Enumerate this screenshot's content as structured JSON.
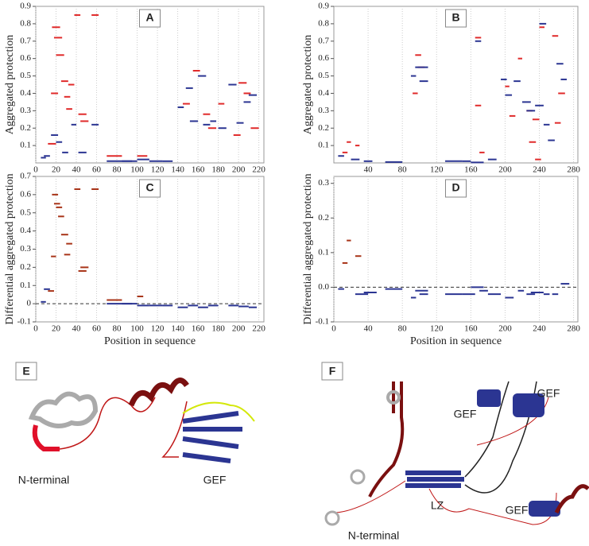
{
  "chart_data": [
    {
      "type": "segment",
      "label": "A",
      "ylabel": "Aggregated protection",
      "xlim": [
        0,
        225
      ],
      "xticks": [
        0,
        20,
        40,
        60,
        80,
        100,
        120,
        140,
        160,
        180,
        200,
        220
      ],
      "ylim": [
        0,
        0.9
      ],
      "yticks": [
        0.1,
        0.2,
        0.3,
        0.4,
        0.5,
        0.6,
        0.7,
        0.8,
        0.9
      ],
      "series": [
        {
          "color": "#e02a2a",
          "x": [
            12,
            15,
            16,
            18,
            20,
            25,
            28,
            30,
            32,
            38,
            42,
            44,
            55,
            70,
            100,
            145,
            155,
            165,
            170,
            180,
            195,
            200,
            205,
            212
          ],
          "x_end": [
            20,
            22,
            24,
            26,
            28,
            32,
            34,
            36,
            38,
            44,
            50,
            52,
            62,
            85,
            110,
            152,
            162,
            172,
            178,
            186,
            202,
            208,
            212,
            220
          ],
          "values": [
            0.11,
            0.4,
            0.78,
            0.72,
            0.62,
            0.47,
            0.38,
            0.31,
            0.45,
            0.85,
            0.28,
            0.24,
            0.85,
            0.04,
            0.04,
            0.34,
            0.53,
            0.28,
            0.2,
            0.34,
            0.16,
            0.46,
            0.4,
            0.2
          ]
        },
        {
          "color": "#2b3592",
          "x": [
            5,
            8,
            15,
            20,
            26,
            35,
            42,
            55,
            70,
            85,
            100,
            112,
            125,
            140,
            148,
            152,
            160,
            165,
            172,
            180,
            190,
            198,
            205,
            210
          ],
          "x_end": [
            10,
            14,
            22,
            26,
            32,
            40,
            50,
            62,
            95,
            100,
            112,
            125,
            135,
            146,
            155,
            160,
            168,
            172,
            178,
            188,
            198,
            205,
            212,
            218
          ],
          "values": [
            0.03,
            0.04,
            0.16,
            0.12,
            0.06,
            0.22,
            0.06,
            0.22,
            0.01,
            0.01,
            0.02,
            0.01,
            0.01,
            0.32,
            0.43,
            0.24,
            0.5,
            0.22,
            0.24,
            0.2,
            0.45,
            0.23,
            0.35,
            0.39
          ]
        }
      ]
    },
    {
      "type": "segment",
      "label": "B",
      "ylabel": "Aggregated protection",
      "xlim": [
        0,
        285
      ],
      "xticks": [
        40,
        80,
        120,
        160,
        200,
        240,
        280
      ],
      "ylim": [
        0,
        0.9
      ],
      "yticks": [
        0.1,
        0.2,
        0.3,
        0.4,
        0.5,
        0.6,
        0.7,
        0.8,
        0.9
      ],
      "series": [
        {
          "color": "#e02a2a",
          "x": [
            10,
            15,
            25,
            92,
            95,
            98,
            165,
            165,
            170,
            200,
            205,
            215,
            225,
            228,
            232,
            240,
            255,
            262,
            258,
            235
          ],
          "x_end": [
            16,
            20,
            30,
            98,
            102,
            106,
            172,
            172,
            176,
            205,
            212,
            220,
            232,
            236,
            240,
            246,
            262,
            270,
            265,
            242
          ],
          "values": [
            0.06,
            0.12,
            0.1,
            0.4,
            0.62,
            0.55,
            0.72,
            0.33,
            0.06,
            0.44,
            0.27,
            0.6,
            0.3,
            0.12,
            0.25,
            0.78,
            0.73,
            0.4,
            0.23,
            0.02
          ]
        },
        {
          "color": "#2b3592",
          "x": [
            5,
            20,
            35,
            60,
            90,
            95,
            100,
            130,
            150,
            165,
            160,
            180,
            195,
            200,
            210,
            220,
            225,
            235,
            240,
            245,
            250,
            260,
            265
          ],
          "x_end": [
            12,
            30,
            45,
            80,
            96,
            110,
            110,
            150,
            160,
            172,
            175,
            190,
            202,
            208,
            218,
            230,
            235,
            245,
            248,
            252,
            258,
            268,
            272
          ],
          "values": [
            0.04,
            0.02,
            0.01,
            0.005,
            0.5,
            0.55,
            0.47,
            0.01,
            0.01,
            0.7,
            0.003,
            0.02,
            0.48,
            0.39,
            0.47,
            0.35,
            0.3,
            0.33,
            0.8,
            0.22,
            0.13,
            0.57,
            0.48
          ]
        }
      ]
    },
    {
      "type": "segment",
      "label": "C",
      "ylabel": "Differential aggregated protection",
      "xlabel": "Position in sequence",
      "xlim": [
        0,
        225
      ],
      "xticks": [
        0,
        20,
        40,
        60,
        80,
        100,
        120,
        140,
        160,
        180,
        200,
        220
      ],
      "ylim": [
        -0.1,
        0.7
      ],
      "yticks": [
        -0.1,
        0,
        0.1,
        0.2,
        0.3,
        0.4,
        0.5,
        0.6,
        0.7
      ],
      "hline": 0,
      "series": [
        {
          "color": "#a83418",
          "x": [
            12,
            15,
            16,
            18,
            20,
            22,
            25,
            28,
            30,
            38,
            42,
            44,
            55,
            70,
            100
          ],
          "x_end": [
            18,
            20,
            22,
            24,
            26,
            28,
            32,
            34,
            36,
            44,
            50,
            52,
            62,
            85,
            106
          ],
          "values": [
            0.07,
            0.26,
            0.6,
            0.55,
            0.53,
            0.48,
            0.38,
            0.27,
            0.33,
            0.63,
            0.18,
            0.2,
            0.63,
            0.02,
            0.04
          ]
        },
        {
          "color": "#2b3592",
          "x": [
            5,
            8,
            70,
            85,
            100,
            112,
            125,
            140,
            150,
            160,
            170,
            190,
            200,
            210
          ],
          "x_end": [
            10,
            14,
            95,
            100,
            112,
            125,
            135,
            150,
            160,
            170,
            180,
            200,
            210,
            218
          ],
          "values": [
            0.01,
            0.08,
            0,
            0,
            -0.01,
            -0.01,
            -0.01,
            -0.02,
            -0.01,
            -0.02,
            -0.01,
            -0.01,
            -0.015,
            -0.02
          ]
        }
      ]
    },
    {
      "type": "segment",
      "label": "D",
      "ylabel": "Differential aggregated protection",
      "xlabel": "Position in sequence",
      "xlim": [
        0,
        285
      ],
      "xticks": [
        0,
        40,
        80,
        120,
        160,
        200,
        240,
        280
      ],
      "ylim": [
        -0.1,
        0.32
      ],
      "yticks": [
        -0.1,
        {
          "value": 0,
          "label": "0.0"
        },
        0.1,
        0.2,
        0.3
      ],
      "hline": 0,
      "series": [
        {
          "color": "#a83418",
          "x": [
            10,
            15,
            25
          ],
          "x_end": [
            16,
            20,
            32
          ],
          "values": [
            0.07,
            0.135,
            0.09
          ]
        },
        {
          "color": "#2b3592",
          "x": [
            5,
            25,
            35,
            60,
            90,
            95,
            100,
            130,
            150,
            160,
            170,
            180,
            200,
            215,
            225,
            230,
            245,
            255,
            265
          ],
          "x_end": [
            12,
            40,
            50,
            80,
            96,
            110,
            110,
            150,
            165,
            175,
            180,
            195,
            210,
            222,
            235,
            245,
            252,
            262,
            275
          ],
          "values": [
            -0.005,
            -0.02,
            -0.015,
            -0.005,
            -0.03,
            -0.01,
            -0.02,
            -0.02,
            -0.02,
            0,
            -0.01,
            -0.02,
            -0.03,
            -0.01,
            -0.02,
            -0.015,
            -0.02,
            -0.02,
            0.01
          ]
        }
      ]
    }
  ],
  "structures": [
    {
      "letter": "E",
      "labels": [
        "N-terminal",
        "GEF"
      ]
    },
    {
      "letter": "F",
      "labels": [
        "GEF",
        "GEF",
        "LZ",
        "N-terminal",
        "GEF"
      ]
    }
  ]
}
